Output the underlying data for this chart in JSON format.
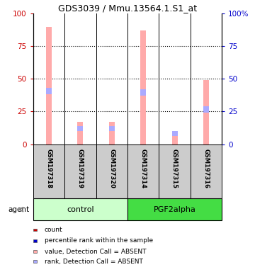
{
  "title": "GDS3039 / Mmu.13564.1.S1_at",
  "samples": [
    "GSM197318",
    "GSM197319",
    "GSM197320",
    "GSM197314",
    "GSM197315",
    "GSM197316"
  ],
  "groups": [
    "control",
    "control",
    "control",
    "PGF2alpha",
    "PGF2alpha",
    "PGF2alpha"
  ],
  "bar_pink_heights": [
    90,
    17,
    17,
    87,
    8,
    49
  ],
  "bar_blue_bottom": [
    38,
    10,
    10,
    37,
    6,
    24
  ],
  "bar_blue_heights": [
    5,
    4,
    4,
    5,
    4,
    5
  ],
  "pink_color": "#ffaaaa",
  "lightblue_color": "#aaaaff",
  "red_color": "#cc0000",
  "darkblue_color": "#0000cc",
  "ylim": [
    0,
    100
  ],
  "yticks": [
    0,
    25,
    50,
    75,
    100
  ],
  "yticklabels_left": [
    "0",
    "25",
    "50",
    "75",
    "100"
  ],
  "yticklabels_right": [
    "0",
    "25",
    "50",
    "75",
    "100%"
  ],
  "left_tick_color": "#cc0000",
  "right_tick_color": "#0000cc",
  "control_color": "#ccffcc",
  "pgf_color": "#44dd44",
  "legend_items": [
    {
      "label": "count",
      "color": "#cc0000"
    },
    {
      "label": "percentile rank within the sample",
      "color": "#0000cc"
    },
    {
      "label": "value, Detection Call = ABSENT",
      "color": "#ffaaaa"
    },
    {
      "label": "rank, Detection Call = ABSENT",
      "color": "#aaaaff"
    }
  ],
  "agent_label": "agent",
  "group_label_control": "control",
  "group_label_pgf": "PGF2alpha",
  "bar_width": 0.18
}
